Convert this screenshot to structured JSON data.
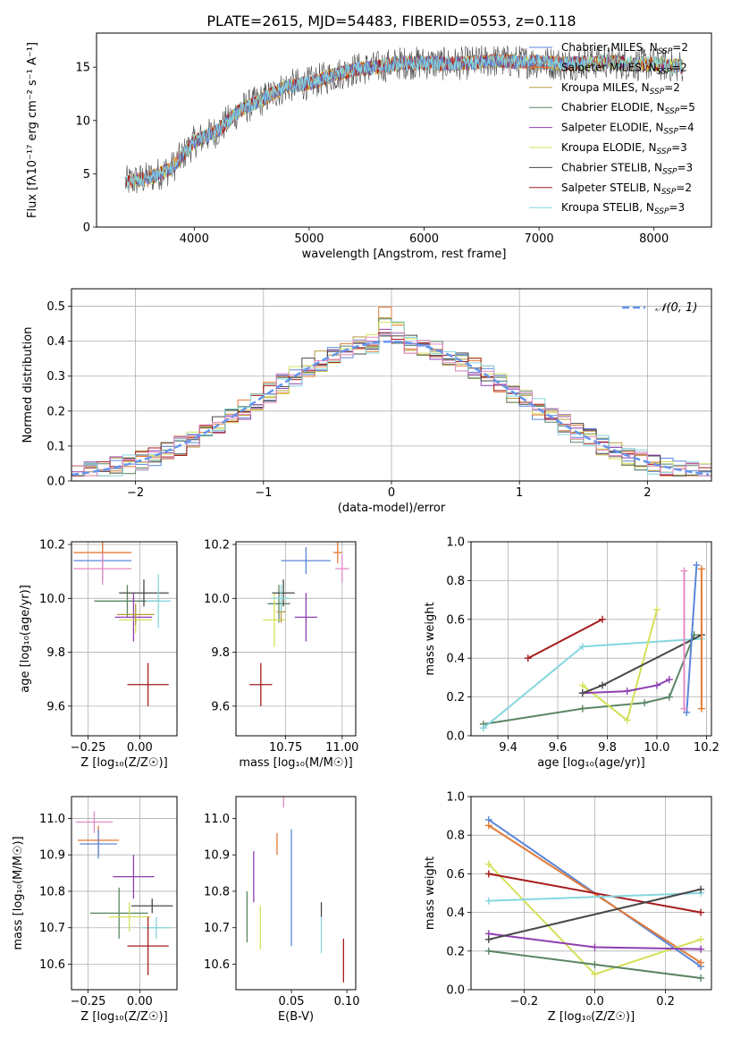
{
  "title": "PLATE=2615, MJD=54483, FIBERID=0553, z=0.118",
  "colors": {
    "Chabrier MILES": "#5b86d9",
    "Salpeter MILES": "#e37a36",
    "Kroupa MILES": "#b89b3e",
    "Chabrier ELODIE": "#5a8563",
    "Salpeter ELODIE": "#8e3fb0",
    "Kroupa ELODIE": "#d4e05a",
    "Chabrier STELIB": "#474747",
    "Salpeter STELIB": "#a51c1c",
    "Kroupa STELIB": "#86d6de",
    "Pink": "#e38ac3",
    "Gaussian": "#6495ed"
  },
  "chart_data": [
    {
      "id": "spectrum",
      "type": "line",
      "title": "PLATE=2615, MJD=54483, FIBERID=0553, z=0.118",
      "xlabel": "wavelength [Angstrom, rest frame]",
      "ylabel": "Flux [fλ10⁻¹⁷ erg cm⁻² s⁻¹ A⁻¹]",
      "xlim": [
        3150,
        8500
      ],
      "ylim": [
        0,
        18.2
      ],
      "xticks": [
        4000,
        5000,
        6000,
        7000,
        8000
      ],
      "yticks": [
        0,
        5,
        10,
        15
      ],
      "continuum": {
        "x": [
          3400,
          3600,
          3800,
          4000,
          4200,
          4400,
          4600,
          4800,
          5000,
          5200,
          5400,
          5600,
          5800,
          6000,
          6200,
          6400,
          6600,
          6800,
          7000,
          7200,
          7400,
          7600,
          7800,
          8000,
          8200
        ],
        "y": [
          4.2,
          4.6,
          5.5,
          8.0,
          9.0,
          11.0,
          12.0,
          13.2,
          13.5,
          14.2,
          14.8,
          15.0,
          15.4,
          15.4,
          15.3,
          15.4,
          15.6,
          15.5,
          15.5,
          15.3,
          15.4,
          15.5,
          15.3,
          15.3,
          15.1
        ]
      },
      "legend_position": "upper right",
      "legend": [
        {
          "label": "Chabrier MILES, N",
          "sub": "SSP",
          "eq": "=2"
        },
        {
          "label": "Salpeter MILES, N",
          "sub": "SSP",
          "eq": "=2"
        },
        {
          "label": "Kroupa MILES, N",
          "sub": "SSP",
          "eq": "=2"
        },
        {
          "label": "Chabrier ELODIE, N",
          "sub": "SSP",
          "eq": "=5"
        },
        {
          "label": "Salpeter ELODIE, N",
          "sub": "SSP",
          "eq": "=4"
        },
        {
          "label": "Kroupa ELODIE, N",
          "sub": "SSP",
          "eq": "=3"
        },
        {
          "label": "Chabrier STELIB, N",
          "sub": "SSP",
          "eq": "=3"
        },
        {
          "label": "Salpeter STELIB, N",
          "sub": "SSP",
          "eq": "=2"
        },
        {
          "label": "Kroupa STELIB, N",
          "sub": "SSP",
          "eq": "=3"
        }
      ]
    },
    {
      "id": "residuals",
      "type": "bar",
      "xlabel": "(data-model)/error",
      "ylabel": "Normed distribution",
      "xlim": [
        -2.5,
        2.5
      ],
      "ylim": [
        0,
        0.55
      ],
      "xticks": [
        -2,
        -1,
        0,
        1,
        2
      ],
      "yticks": [
        0.0,
        0.1,
        0.2,
        0.3,
        0.4,
        0.5
      ],
      "grid": true,
      "bin_width": 0.1,
      "gaussian_label": "𝒩(0, 1)",
      "legend_position": "upper right"
    },
    {
      "id": "age-vs-Z",
      "type": "scatter",
      "xlabel": "Z [log₁₀(Z/Z☉)]",
      "ylabel": "age  [log₁₀(age/yr)]",
      "xlim": [
        -0.33,
        0.18
      ],
      "ylim": [
        9.49,
        10.21
      ],
      "xticks": [
        -0.25,
        0.0
      ],
      "yticks": [
        9.6,
        9.8,
        10.0,
        10.2
      ],
      "grid": true,
      "points": [
        {
          "series": "Chabrier MILES",
          "x": -0.18,
          "y": 10.14,
          "xerr": 0.14,
          "yerr": 0.07
        },
        {
          "series": "Salpeter MILES",
          "x": -0.18,
          "y": 10.17,
          "xerr": 0.14,
          "yerr": 0.04
        },
        {
          "series": "Pink",
          "x": -0.18,
          "y": 10.11,
          "xerr": 0.14,
          "yerr": 0.06
        },
        {
          "series": "Chabrier ELODIE",
          "x": -0.06,
          "y": 9.99,
          "xerr": 0.16,
          "yerr": 0.06
        },
        {
          "series": "Salpeter ELODIE",
          "x": -0.03,
          "y": 9.93,
          "xerr": 0.09,
          "yerr": 0.09
        },
        {
          "series": "Kroupa ELODIE",
          "x": -0.02,
          "y": 9.92,
          "xerr": 0.08,
          "yerr": 0.05
        },
        {
          "series": "Kroupa MILES",
          "x": -0.02,
          "y": 9.94,
          "xerr": 0.09,
          "yerr": 0.04
        },
        {
          "series": "Chabrier STELIB",
          "x": 0.02,
          "y": 10.02,
          "xerr": 0.12,
          "yerr": 0.05
        },
        {
          "series": "Kroupa STELIB",
          "x": 0.09,
          "y": 9.99,
          "xerr": 0.06,
          "yerr": 0.1
        },
        {
          "series": "Salpeter STELIB",
          "x": 0.04,
          "y": 9.68,
          "xerr": 0.1,
          "yerr": 0.08
        }
      ]
    },
    {
      "id": "age-vs-mass",
      "type": "scatter",
      "xlabel": "mass [log₁₀(M/M☉)]",
      "ylabel": "",
      "xlim": [
        10.53,
        11.06
      ],
      "ylim": [
        9.49,
        10.21
      ],
      "xticks": [
        10.75,
        11.0
      ],
      "yticks": [
        9.6,
        9.8,
        10.0,
        10.2
      ],
      "grid": true,
      "points": [
        {
          "series": "Chabrier MILES",
          "x": 10.84,
          "y": 10.14,
          "xerr": 0.11,
          "yerr": 0.05
        },
        {
          "series": "Salpeter MILES",
          "x": 10.98,
          "y": 10.17,
          "xerr": 0.02,
          "yerr": 0.04
        },
        {
          "series": "Pink",
          "x": 11.0,
          "y": 10.11,
          "xerr": 0.03,
          "yerr": 0.05
        },
        {
          "series": "Chabrier ELODIE",
          "x": 10.72,
          "y": 9.98,
          "xerr": 0.05,
          "yerr": 0.07
        },
        {
          "series": "Salpeter ELODIE",
          "x": 10.84,
          "y": 9.93,
          "xerr": 0.05,
          "yerr": 0.09
        },
        {
          "series": "Kroupa ELODIE",
          "x": 10.7,
          "y": 9.92,
          "xerr": 0.05,
          "yerr": 0.1
        },
        {
          "series": "Kroupa MILES",
          "x": 10.73,
          "y": 9.95,
          "xerr": 0.02,
          "yerr": 0.04
        },
        {
          "series": "Chabrier STELIB",
          "x": 10.74,
          "y": 10.02,
          "xerr": 0.05,
          "yerr": 0.05
        },
        {
          "series": "Kroupa STELIB",
          "x": 10.73,
          "y": 10.0,
          "xerr": 0.04,
          "yerr": 0.05
        },
        {
          "series": "Salpeter STELIB",
          "x": 10.64,
          "y": 9.68,
          "xerr": 0.05,
          "yerr": 0.08
        }
      ]
    },
    {
      "id": "weight-vs-age",
      "type": "line",
      "xlabel": "age  [log₁₀(age/yr)]",
      "ylabel": "mass weight",
      "xlim": [
        9.25,
        10.22
      ],
      "ylim": [
        0,
        1.0
      ],
      "xticks": [
        9.4,
        9.6,
        9.8,
        10.0,
        10.2
      ],
      "yticks": [
        0.0,
        0.2,
        0.4,
        0.6,
        0.8,
        1.0
      ],
      "grid": true,
      "series": [
        {
          "name": "Chabrier ELODIE",
          "x": [
            9.3,
            9.7,
            9.95,
            10.05,
            10.15
          ],
          "y": [
            0.06,
            0.14,
            0.17,
            0.2,
            0.52
          ]
        },
        {
          "name": "Kroupa STELIB",
          "x": [
            9.3,
            9.7,
            10.18
          ],
          "y": [
            0.04,
            0.46,
            0.5
          ]
        },
        {
          "name": "Salpeter STELIB",
          "x": [
            9.48,
            9.78
          ],
          "y": [
            0.4,
            0.6
          ]
        },
        {
          "name": "Kroupa ELODIE",
          "x": [
            9.7,
            9.88,
            10.0
          ],
          "y": [
            0.26,
            0.08,
            0.65
          ]
        },
        {
          "name": "Salpeter ELODIE",
          "x": [
            9.7,
            9.88,
            10.0,
            10.05
          ],
          "y": [
            0.22,
            0.23,
            0.26,
            0.29
          ]
        },
        {
          "name": "Chabrier STELIB",
          "x": [
            9.7,
            9.78,
            10.18
          ],
          "y": [
            0.22,
            0.26,
            0.52
          ]
        },
        {
          "name": "Chabrier MILES",
          "x": [
            10.12,
            10.16
          ],
          "y": [
            0.12,
            0.88
          ]
        },
        {
          "name": "Salpeter MILES",
          "x": [
            10.18,
            10.18
          ],
          "y": [
            0.14,
            0.86
          ]
        },
        {
          "name": "Pink",
          "x": [
            10.11,
            10.11
          ],
          "y": [
            0.14,
            0.85
          ]
        }
      ]
    },
    {
      "id": "mass-vs-Z",
      "type": "scatter",
      "xlabel": "Z [log₁₀(Z/Z☉)]",
      "ylabel": "mass [log₁₀(M/M☉)]",
      "xlim": [
        -0.33,
        0.18
      ],
      "ylim": [
        10.53,
        11.06
      ],
      "xticks": [
        -0.25,
        0.0
      ],
      "yticks": [
        10.6,
        10.7,
        10.8,
        10.9,
        11.0
      ],
      "grid": true,
      "points": [
        {
          "series": "Pink",
          "x": -0.22,
          "y": 10.99,
          "xerr": 0.09,
          "yerr": 0.03
        },
        {
          "series": "Salpeter MILES",
          "x": -0.2,
          "y": 10.94,
          "xerr": 0.1,
          "yerr": 0.04
        },
        {
          "series": "Chabrier MILES",
          "x": -0.2,
          "y": 10.93,
          "xerr": 0.09,
          "yerr": 0.04
        },
        {
          "series": "Salpeter ELODIE",
          "x": -0.03,
          "y": 10.84,
          "xerr": 0.1,
          "yerr": 0.06
        },
        {
          "series": "Chabrier ELODIE",
          "x": -0.1,
          "y": 10.74,
          "xerr": 0.14,
          "yerr": 0.07
        },
        {
          "series": "Kroupa ELODIE",
          "x": -0.05,
          "y": 10.73,
          "xerr": 0.1,
          "yerr": 0.04
        },
        {
          "series": "Chabrier STELIB",
          "x": 0.06,
          "y": 10.76,
          "xerr": 0.1,
          "yerr": 0.02
        },
        {
          "series": "Kroupa STELIB",
          "x": 0.08,
          "y": 10.7,
          "xerr": 0.07,
          "yerr": 0.03
        },
        {
          "series": "Salpeter STELIB",
          "x": 0.04,
          "y": 10.65,
          "xerr": 0.1,
          "yerr": 0.08
        }
      ]
    },
    {
      "id": "mass-vs-ebv",
      "type": "scatter",
      "xlabel": "E(B-V)",
      "ylabel": "",
      "xlim": [
        0.0,
        0.108
      ],
      "ylim": [
        10.53,
        11.06
      ],
      "xticks": [
        0.05,
        0.1
      ],
      "yticks": [
        10.6,
        10.7,
        10.8,
        10.9,
        11.0
      ],
      "grid": false,
      "points": [
        {
          "series": "Pink",
          "x": 0.043,
          "y": 11.07,
          "xerr": 0,
          "yerr": 0.04
        },
        {
          "series": "Salpeter MILES",
          "x": 0.037,
          "y": 10.93,
          "xerr": 0,
          "yerr": 0.03
        },
        {
          "series": "Salpeter ELODIE",
          "x": 0.016,
          "y": 10.84,
          "xerr": 0,
          "yerr": 0.07
        },
        {
          "series": "Chabrier MILES",
          "x": 0.05,
          "y": 10.81,
          "xerr": 0,
          "yerr": 0.16
        },
        {
          "series": "Chabrier ELODIE",
          "x": 0.01,
          "y": 10.73,
          "xerr": 0,
          "yerr": 0.07
        },
        {
          "series": "Kroupa ELODIE",
          "x": 0.022,
          "y": 10.7,
          "xerr": 0,
          "yerr": 0.06
        },
        {
          "series": "Chabrier STELIB",
          "x": 0.077,
          "y": 10.75,
          "xerr": 0,
          "yerr": 0.02
        },
        {
          "series": "Kroupa STELIB",
          "x": 0.077,
          "y": 10.68,
          "xerr": 0,
          "yerr": 0.05
        },
        {
          "series": "Salpeter STELIB",
          "x": 0.097,
          "y": 10.61,
          "xerr": 0,
          "yerr": 0.06
        }
      ]
    },
    {
      "id": "weight-vs-Z",
      "type": "line",
      "xlabel": "Z [log₁₀(Z/Z☉)]",
      "ylabel": "mass weight",
      "xlim": [
        -0.35,
        0.33
      ],
      "ylim": [
        0,
        1.0
      ],
      "xticks": [
        -0.2,
        0.0,
        0.2
      ],
      "yticks": [
        0.0,
        0.2,
        0.4,
        0.6,
        0.8,
        1.0
      ],
      "grid": true,
      "series": [
        {
          "name": "Chabrier MILES",
          "x": [
            -0.3,
            0.3
          ],
          "y": [
            0.88,
            0.12
          ]
        },
        {
          "name": "Salpeter MILES",
          "x": [
            -0.3,
            0.3
          ],
          "y": [
            0.85,
            0.14
          ]
        },
        {
          "name": "Kroupa ELODIE",
          "x": [
            -0.3,
            0.0,
            0.3
          ],
          "y": [
            0.65,
            0.08,
            0.26
          ]
        },
        {
          "name": "Salpeter STELIB",
          "x": [
            -0.3,
            0.3
          ],
          "y": [
            0.6,
            0.4
          ]
        },
        {
          "name": "Kroupa STELIB",
          "x": [
            -0.3,
            0.3
          ],
          "y": [
            0.46,
            0.5
          ]
        },
        {
          "name": "Salpeter ELODIE",
          "x": [
            -0.3,
            0.0,
            0.3
          ],
          "y": [
            0.29,
            0.22,
            0.21
          ]
        },
        {
          "name": "Chabrier STELIB",
          "x": [
            -0.3,
            0.3
          ],
          "y": [
            0.26,
            0.52
          ]
        },
        {
          "name": "Chabrier ELODIE",
          "x": [
            -0.3,
            0.0,
            0.3
          ],
          "y": [
            0.2,
            0.13,
            0.06
          ]
        }
      ]
    }
  ]
}
